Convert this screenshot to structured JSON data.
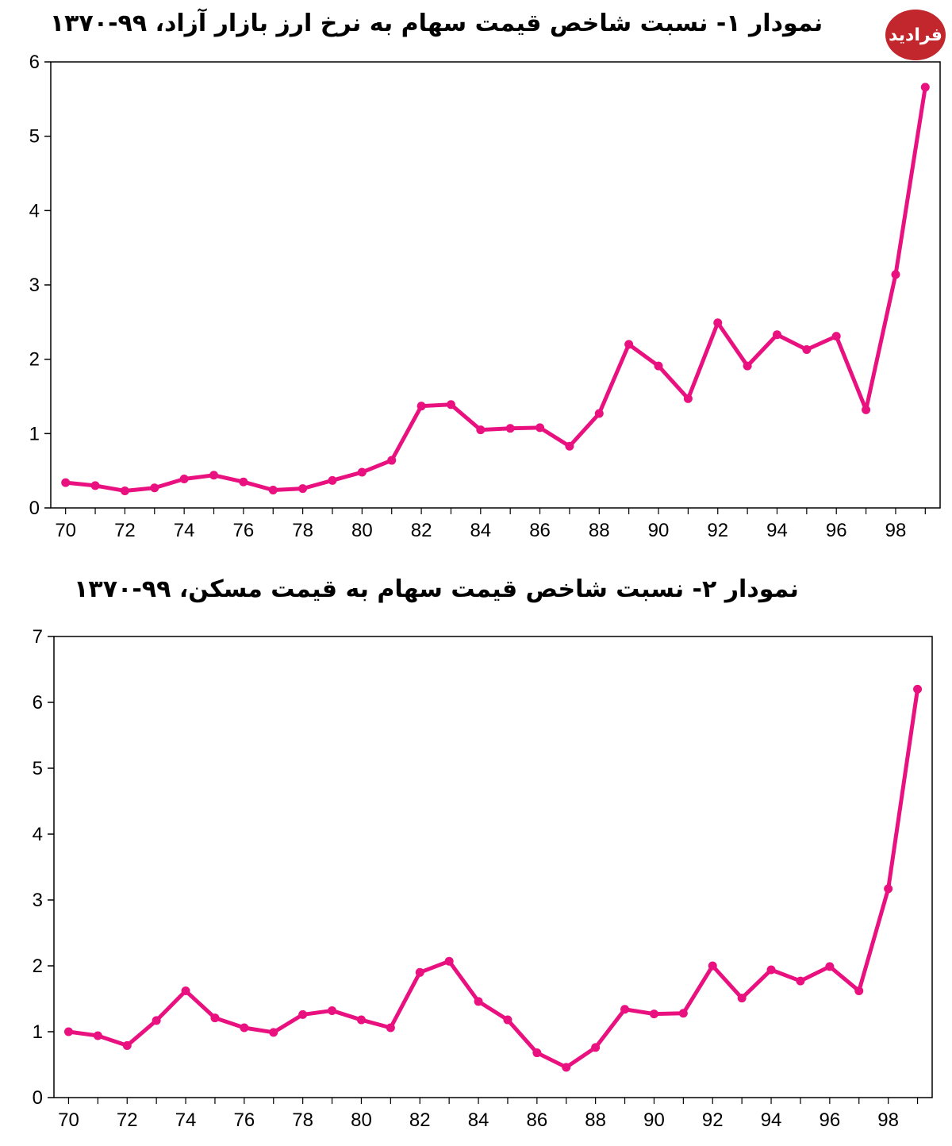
{
  "logo": {
    "text": "فرادید"
  },
  "colors": {
    "line": "#e8117f",
    "axis": "#000000"
  },
  "chart_data": [
    {
      "type": "line",
      "title": "نمودار ۱- نسبت شاخص قیمت سهام به نرخ ارز بازار آزاد، ۹۹-۱۳۷۰",
      "x": [
        70,
        71,
        72,
        73,
        74,
        75,
        76,
        77,
        78,
        79,
        80,
        81,
        82,
        83,
        84,
        85,
        86,
        87,
        88,
        89,
        90,
        91,
        92,
        93,
        94,
        95,
        96,
        97,
        98,
        99
      ],
      "x_ticks": [
        "70",
        "72",
        "74",
        "76",
        "78",
        "80",
        "82",
        "84",
        "86",
        "88",
        "90",
        "92",
        "94",
        "96",
        "98"
      ],
      "y_ticks": [
        "0",
        "1",
        "2",
        "3",
        "4",
        "5",
        "6"
      ],
      "ylim": [
        0,
        6
      ],
      "xlim": [
        69.5,
        99.5
      ],
      "series": [
        {
          "values": [
            0.34,
            0.3,
            0.23,
            0.27,
            0.39,
            0.44,
            0.35,
            0.24,
            0.26,
            0.37,
            0.48,
            0.64,
            1.37,
            1.39,
            1.05,
            1.07,
            1.08,
            0.83,
            1.27,
            2.2,
            1.91,
            1.47,
            2.49,
            1.91,
            2.33,
            2.13,
            2.31,
            1.32,
            3.14,
            5.66
          ]
        }
      ]
    },
    {
      "type": "line",
      "title": "نمودار ۲- نسبت شاخص قیمت سهام به قیمت مسکن، ۹۹-۱۳۷۰",
      "x": [
        70,
        71,
        72,
        73,
        74,
        75,
        76,
        77,
        78,
        79,
        80,
        81,
        82,
        83,
        84,
        85,
        86,
        87,
        88,
        89,
        90,
        91,
        92,
        93,
        94,
        95,
        96,
        97,
        98,
        99
      ],
      "x_ticks": [
        "70",
        "72",
        "74",
        "76",
        "78",
        "80",
        "82",
        "84",
        "86",
        "88",
        "90",
        "92",
        "94",
        "96",
        "98"
      ],
      "y_ticks": [
        "0",
        "1",
        "2",
        "3",
        "4",
        "5",
        "6",
        "7"
      ],
      "ylim": [
        0,
        7
      ],
      "xlim": [
        69.5,
        99.5
      ],
      "series": [
        {
          "values": [
            1.0,
            0.94,
            0.79,
            1.17,
            1.62,
            1.21,
            1.06,
            0.99,
            1.26,
            1.32,
            1.18,
            1.06,
            1.9,
            2.07,
            1.46,
            1.18,
            0.68,
            0.46,
            0.76,
            1.34,
            1.27,
            1.28,
            2.0,
            1.51,
            1.94,
            1.77,
            1.99,
            1.62,
            3.17,
            6.2
          ]
        }
      ]
    }
  ]
}
